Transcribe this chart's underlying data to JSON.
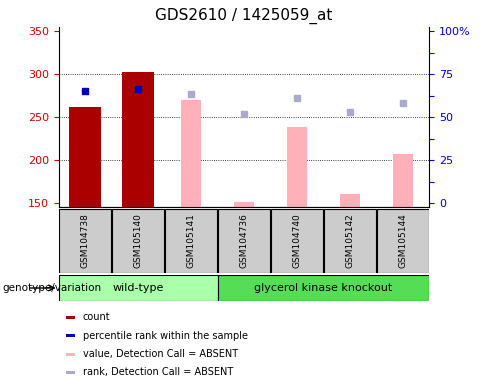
{
  "title": "GDS2610 / 1425059_at",
  "samples": [
    "GSM104738",
    "GSM105140",
    "GSM105141",
    "GSM104736",
    "GSM104740",
    "GSM105142",
    "GSM105144"
  ],
  "wild_type_count": 3,
  "knockout_count": 4,
  "ylim": [
    145,
    355
  ],
  "yticks": [
    150,
    200,
    250,
    300,
    350
  ],
  "right_tick_positions": [
    150,
    175,
    200,
    225,
    250,
    275,
    300,
    325,
    350
  ],
  "right_tick_labels": [
    "0",
    "",
    "25",
    "",
    "50",
    "",
    "75",
    "",
    "100%"
  ],
  "count_bars": {
    "indices": [
      0,
      1
    ],
    "values": [
      262,
      303
    ],
    "color": "#AA0000"
  },
  "absent_value_bars": {
    "indices": [
      2,
      3,
      4,
      5,
      6
    ],
    "values": [
      270,
      151,
      238,
      160,
      207
    ],
    "color": "#FFB0B8"
  },
  "percentile_rank_squares": {
    "indices": [
      0,
      1
    ],
    "values": [
      280,
      283
    ],
    "color": "#0000BB"
  },
  "absent_rank_squares": {
    "indices": [
      2,
      3,
      4,
      5,
      6
    ],
    "values": [
      277,
      254,
      272,
      256,
      267
    ],
    "color": "#AAAACC"
  },
  "bar_bottom": 145,
  "bar_width": 0.6,
  "grid_lines": [
    200,
    250,
    300
  ],
  "label_area_color": "#CCCCCC",
  "wild_type_color": "#AAFFAA",
  "knockout_color": "#55DD55",
  "genotype_label": "genotype/variation",
  "wild_type_label": "wild-type",
  "knockout_label": "glycerol kinase knockout",
  "legend_items": [
    {
      "label": "count",
      "color": "#AA0000"
    },
    {
      "label": "percentile rank within the sample",
      "color": "#0000BB"
    },
    {
      "label": "value, Detection Call = ABSENT",
      "color": "#FFB0B8"
    },
    {
      "label": "rank, Detection Call = ABSENT",
      "color": "#AAAACC"
    }
  ],
  "left_axis_color": "#CC0000",
  "right_axis_color": "#0000CC",
  "title_fontsize": 11,
  "tick_fontsize": 8,
  "sample_fontsize": 6.5,
  "legend_fontsize": 7,
  "genotype_fontsize": 8
}
